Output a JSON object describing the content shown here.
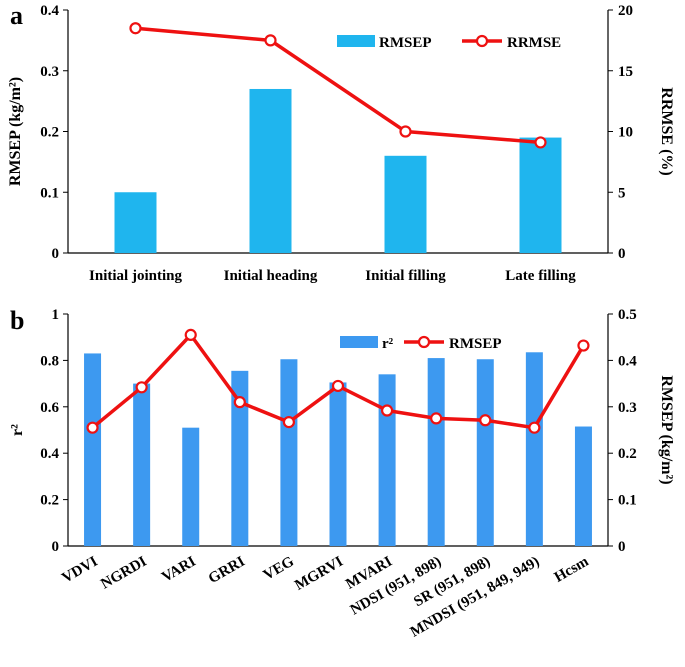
{
  "colors": {
    "bar": "#1fb5ee",
    "bar_b": "#3d99f0",
    "line": "#ee1111",
    "axis": "#000000"
  },
  "chart_data": [
    {
      "type": "bar+line",
      "panel_label": "a",
      "categories": [
        "Initial jointing",
        "Initial heading",
        "Initial filling",
        "Late filling"
      ],
      "series": [
        {
          "name": "RMSEP",
          "kind": "bar",
          "axis": "left",
          "values": [
            0.1,
            0.27,
            0.16,
            0.19
          ]
        },
        {
          "name": "RRMSE",
          "kind": "line",
          "axis": "right",
          "values": [
            18.5,
            17.5,
            10.0,
            9.1
          ]
        }
      ],
      "ylabel_left": "RMSEP (kg/m²)",
      "ylabel_right": "RRMSE (%)",
      "ylim_left": [
        0,
        0.4
      ],
      "ylim_right": [
        0,
        20
      ],
      "yticks_left": [
        "0",
        "0.1",
        "0.2",
        "0.3",
        "0.4"
      ],
      "yticks_right": [
        "0",
        "5",
        "10",
        "15",
        "20"
      ],
      "legend_position": "top-right"
    },
    {
      "type": "bar+line",
      "panel_label": "b",
      "categories": [
        "VDVI",
        "NGRDI",
        "VARI",
        "GRRI",
        "VEG",
        "MGRVI",
        "MVARI",
        "NDSI (951, 898)",
        "SR (951, 898)",
        "MNDSI (951, 849, 949)",
        "Hcsm"
      ],
      "series": [
        {
          "name": "r²",
          "kind": "bar",
          "axis": "left",
          "values": [
            0.83,
            0.7,
            0.51,
            0.755,
            0.805,
            0.705,
            0.74,
            0.81,
            0.805,
            0.835,
            0.515
          ]
        },
        {
          "name": "RMSEP",
          "kind": "line",
          "axis": "right",
          "values": [
            0.255,
            0.342,
            0.455,
            0.31,
            0.267,
            0.345,
            0.292,
            0.275,
            0.271,
            0.255,
            0.432
          ]
        }
      ],
      "ylabel_left": "r²",
      "ylabel_right": "RMSEP (kg/m²)",
      "ylim_left": [
        0,
        1
      ],
      "ylim_right": [
        0,
        0.5
      ],
      "yticks_left": [
        "0",
        "0.2",
        "0.4",
        "0.6",
        "0.8",
        "1"
      ],
      "yticks_right": [
        "0",
        "0.1",
        "0.2",
        "0.3",
        "0.4",
        "0.5"
      ],
      "legend_position": "top-center"
    }
  ]
}
